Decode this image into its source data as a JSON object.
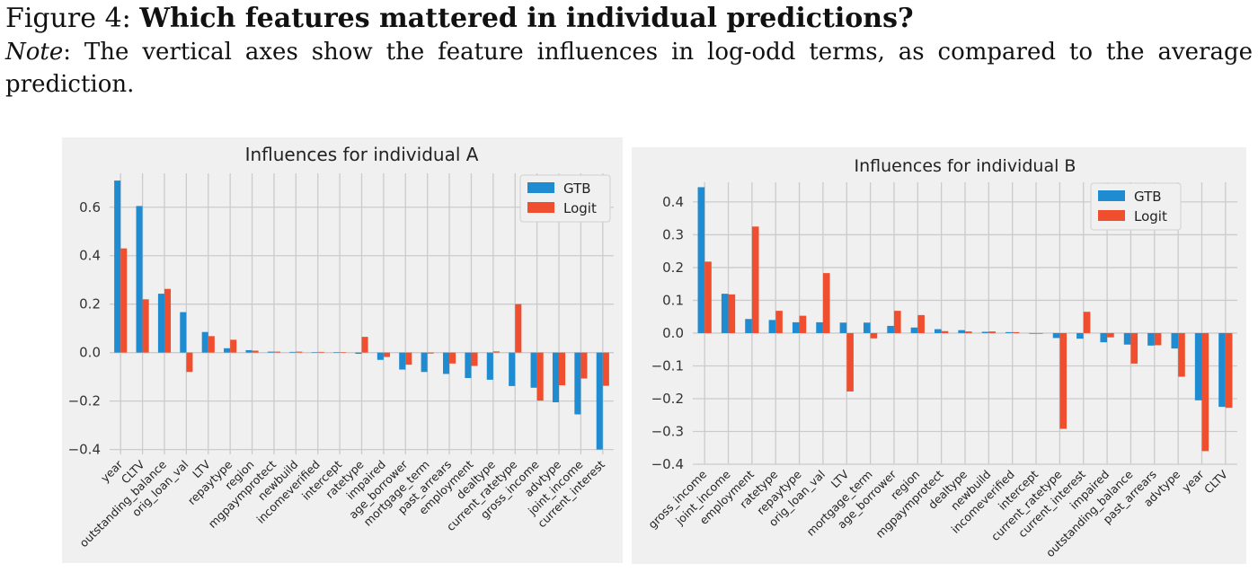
{
  "caption": {
    "figure_label": "Figure 4:",
    "title": "Which features mattered in individual predictions?",
    "note_label": "Note",
    "note_text": ": The vertical axes show the feature influences in log-odd terms, as compared to the average prediction."
  },
  "colors": {
    "GTB": "#1f8bd0",
    "Logit": "#ef4f2e",
    "panel": "#f0f0f0",
    "grid": "#cbcbcb"
  },
  "chart_data": [
    {
      "type": "bar",
      "title": "Influences for individual A",
      "legend_position": "top-right",
      "grid": true,
      "ylim": [
        -0.42,
        0.74
      ],
      "yticks": [
        -0.4,
        -0.2,
        0.0,
        0.2,
        0.4,
        0.6
      ],
      "ytick_labels": [
        "−0.4",
        "−0.2",
        "0.0",
        "0.2",
        "0.4",
        "0.6"
      ],
      "categories": [
        "year",
        "CLTV",
        "outstanding_balance",
        "orig_loan_val",
        "LTV",
        "repaytype",
        "region",
        "mgpaymprotect",
        "newbuild",
        "incomeverified",
        "intercept",
        "ratetype",
        "impaired",
        "age_borrower",
        "mortgage_term",
        "past_arrears",
        "employment",
        "dealtype",
        "current_ratetype",
        "gross_income",
        "advtype",
        "joint_income",
        "current_interest"
      ],
      "series": [
        {
          "name": "GTB",
          "values": [
            0.71,
            0.605,
            0.243,
            0.167,
            0.085,
            0.018,
            0.01,
            0.004,
            0.003,
            0.002,
            0.002,
            -0.005,
            -0.03,
            -0.07,
            -0.08,
            -0.088,
            -0.105,
            -0.112,
            -0.138,
            -0.145,
            -0.205,
            -0.255,
            -0.4
          ]
        },
        {
          "name": "Logit",
          "values": [
            0.43,
            0.22,
            0.263,
            -0.08,
            0.068,
            0.053,
            0.008,
            0.004,
            0.004,
            0.003,
            0.002,
            0.065,
            -0.018,
            -0.05,
            -0.004,
            -0.045,
            -0.055,
            0.005,
            0.2,
            -0.198,
            -0.135,
            -0.107,
            -0.137
          ]
        }
      ]
    },
    {
      "type": "bar",
      "title": "Influences for individual B",
      "legend_position": "top-right",
      "grid": true,
      "ylim": [
        -0.4,
        0.46
      ],
      "yticks": [
        -0.4,
        -0.3,
        -0.2,
        -0.1,
        0.0,
        0.1,
        0.2,
        0.3,
        0.4
      ],
      "ytick_labels": [
        "−0.4",
        "−0.3",
        "−0.2",
        "−0.1",
        "0.0",
        "0.1",
        "0.2",
        "0.3",
        "0.4"
      ],
      "categories": [
        "gross_income",
        "joint_income",
        "employment",
        "ratetype",
        "repaytype",
        "orig_loan_val",
        "LTV",
        "mortgage_term",
        "age_borrower",
        "region",
        "mgpaymprotect",
        "dealtype",
        "newbuild",
        "incomeverified",
        "intercept",
        "current_ratetype",
        "current_interest",
        "impaired",
        "outstanding_balance",
        "past_arrears",
        "advtype",
        "year",
        "CLTV"
      ],
      "series": [
        {
          "name": "GTB",
          "values": [
            0.445,
            0.12,
            0.043,
            0.04,
            0.033,
            0.033,
            0.032,
            0.032,
            0.022,
            0.017,
            0.012,
            0.009,
            0.004,
            0.003,
            -0.002,
            -0.015,
            -0.017,
            -0.028,
            -0.035,
            -0.038,
            -0.047,
            -0.205,
            -0.225
          ]
        },
        {
          "name": "Logit",
          "values": [
            0.218,
            0.118,
            0.325,
            0.068,
            0.053,
            0.183,
            -0.178,
            -0.016,
            0.068,
            0.055,
            0.006,
            0.005,
            0.005,
            0.003,
            -0.002,
            -0.292,
            0.065,
            -0.013,
            -0.093,
            -0.037,
            -0.133,
            -0.36,
            -0.228
          ]
        }
      ]
    }
  ]
}
